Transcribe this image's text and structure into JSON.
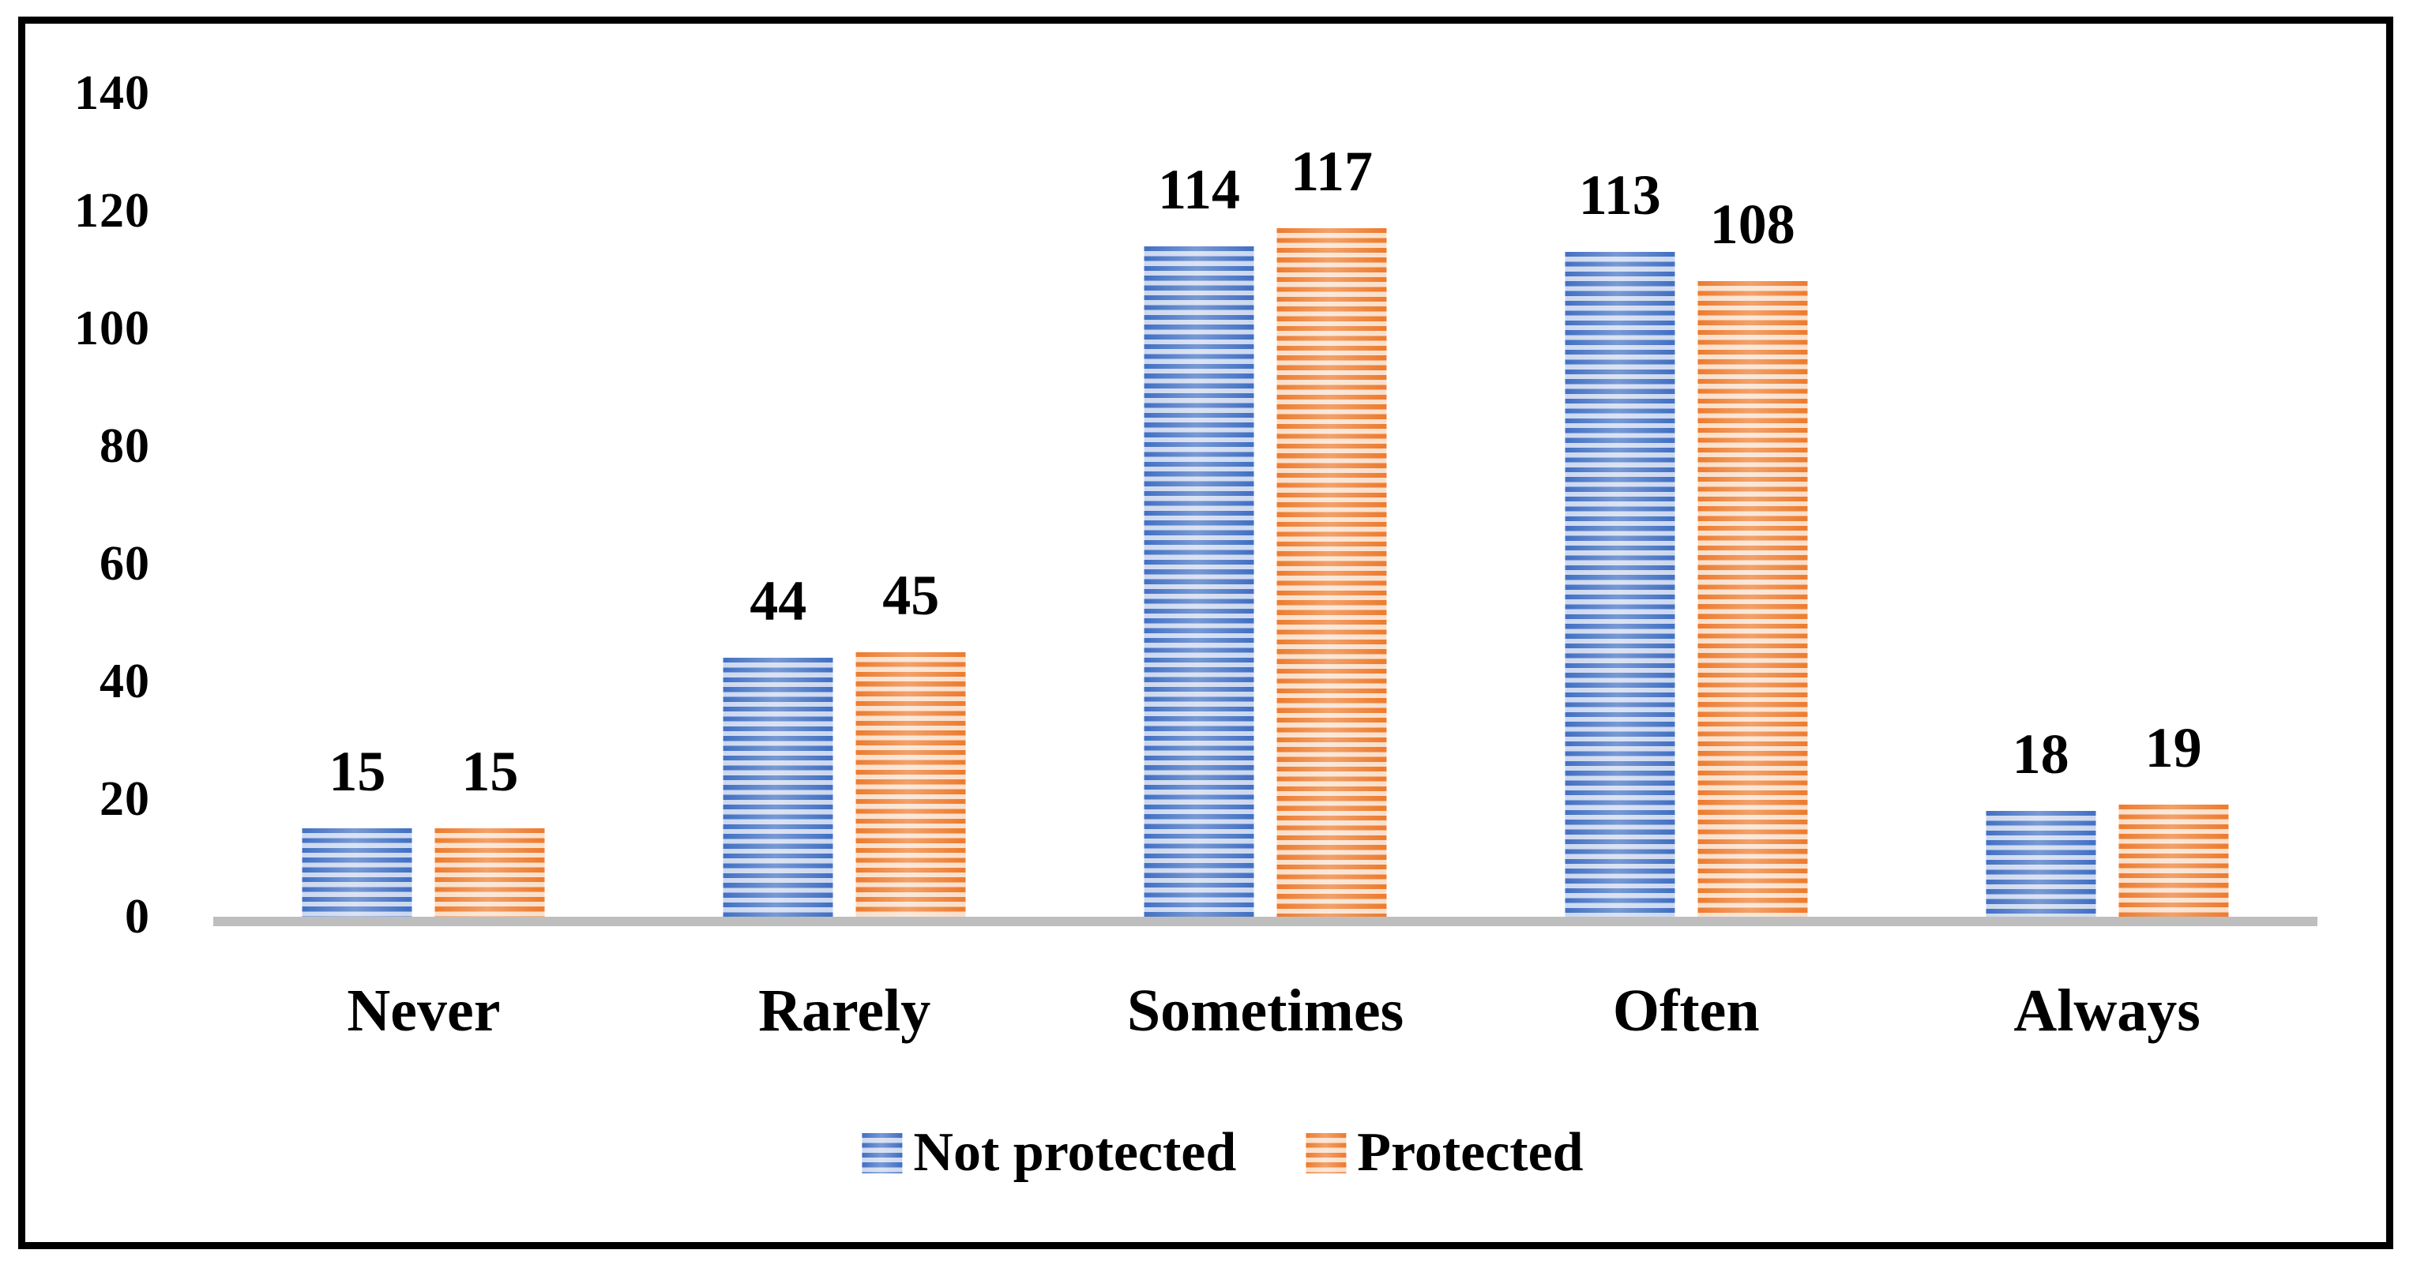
{
  "chart_data": {
    "type": "bar",
    "title": "",
    "categories": [
      "Never",
      "Rarely",
      "Sometimes",
      "Often",
      "Always"
    ],
    "series": [
      {
        "name": "Not protected",
        "color": "#4472C4",
        "light_color": "#CDD8EF",
        "values": [
          15,
          44,
          114,
          113,
          18
        ]
      },
      {
        "name": "Protected",
        "color": "#ED7D31",
        "light_color": "#FADFCB",
        "values": [
          15,
          45,
          117,
          108,
          19
        ]
      }
    ],
    "data_labels": {
      "Not protected": [
        "15",
        "44",
        "114",
        "113",
        "18"
      ],
      "Protected": [
        "15",
        "45",
        "117",
        "108",
        "19"
      ]
    },
    "ylim": [
      0,
      140
    ],
    "yticks": [
      140,
      120,
      100,
      80,
      60,
      40,
      20,
      0
    ],
    "grid": false,
    "legend_position": "bottom",
    "axis_line_color": "#BEBEBE",
    "frame_color": "#000000",
    "xlabel": "",
    "ylabel": ""
  }
}
